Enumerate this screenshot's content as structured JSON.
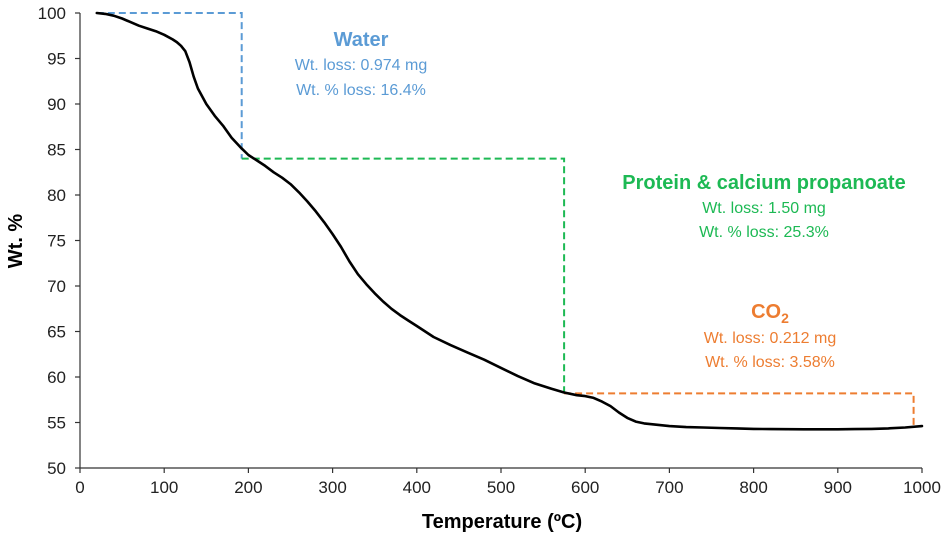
{
  "chart_data": {
    "type": "line",
    "xlabel": "Temperature (ºC)",
    "ylabel": "Wt. %",
    "xlim": [
      0,
      1000
    ],
    "ylim": [
      50,
      100
    ],
    "x_ticks": [
      "0",
      "100",
      "200",
      "300",
      "400",
      "500",
      "600",
      "700",
      "800",
      "900",
      "1000"
    ],
    "y_ticks": [
      "50",
      "55",
      "60",
      "65",
      "70",
      "75",
      "80",
      "85",
      "90",
      "95",
      "100"
    ],
    "grid": false,
    "series": [
      {
        "color": "#000000",
        "x": [
          20,
          30,
          40,
          50,
          60,
          70,
          80,
          90,
          100,
          110,
          115,
          120,
          125,
          130,
          135,
          140,
          150,
          160,
          170,
          180,
          190,
          200,
          210,
          220,
          230,
          240,
          250,
          260,
          270,
          280,
          290,
          300,
          310,
          320,
          330,
          340,
          350,
          360,
          370,
          380,
          390,
          400,
          420,
          440,
          460,
          480,
          500,
          520,
          540,
          560,
          575,
          590,
          600,
          610,
          620,
          630,
          640,
          650,
          660,
          670,
          680,
          700,
          720,
          740,
          760,
          780,
          800,
          820,
          840,
          860,
          880,
          900,
          920,
          940,
          960,
          980,
          1000
        ],
        "y": [
          100,
          99.9,
          99.7,
          99.4,
          99.0,
          98.6,
          98.3,
          98.0,
          97.6,
          97.1,
          96.8,
          96.4,
          95.8,
          94.6,
          93.0,
          91.7,
          90.0,
          88.7,
          87.6,
          86.3,
          85.3,
          84.4,
          83.8,
          83.2,
          82.5,
          81.9,
          81.2,
          80.3,
          79.3,
          78.2,
          77.0,
          75.7,
          74.3,
          72.7,
          71.3,
          70.2,
          69.2,
          68.3,
          67.5,
          66.8,
          66.2,
          65.6,
          64.4,
          63.5,
          62.7,
          61.9,
          61.0,
          60.1,
          59.3,
          58.7,
          58.3,
          58.0,
          57.9,
          57.7,
          57.3,
          56.8,
          56.1,
          55.5,
          55.1,
          54.9,
          54.8,
          54.6,
          54.5,
          54.45,
          54.4,
          54.35,
          54.3,
          54.28,
          54.26,
          54.25,
          54.25,
          54.25,
          54.28,
          54.3,
          54.35,
          54.45,
          54.6
        ]
      }
    ],
    "step_guides": [
      {
        "color": "#5B9BD5",
        "points": [
          [
            20,
            100
          ],
          [
            192,
            100
          ],
          [
            192,
            84
          ]
        ]
      },
      {
        "color": "#1DB954",
        "points": [
          [
            192,
            84
          ],
          [
            575,
            84
          ],
          [
            575,
            58.2
          ]
        ]
      },
      {
        "color": "#ED7D31",
        "points": [
          [
            575,
            58.2
          ],
          [
            990,
            58.2
          ],
          [
            990,
            54.6
          ]
        ]
      }
    ],
    "annotations": [
      {
        "title": "Water",
        "line1": "Wt. loss: 0.974 mg",
        "line2": "Wt. % loss: 16.4%",
        "color": "#5B9BD5"
      },
      {
        "title": "Protein & calcium propanoate",
        "line1": "Wt. loss: 1.50 mg",
        "line2": "Wt. % loss: 25.3%",
        "color": "#1DB954"
      },
      {
        "title": "CO",
        "title_sub": "2",
        "line1": "Wt. loss: 0.212 mg",
        "line2": "Wt. % loss: 3.58%",
        "color": "#ED7D31"
      }
    ]
  }
}
